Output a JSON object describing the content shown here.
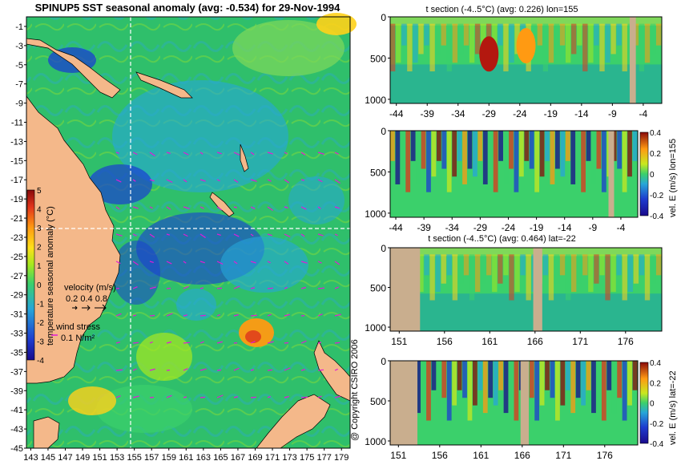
{
  "colors": {
    "land": "#cfa98c",
    "sea_base": "#2fbf6b",
    "cold": "#1a3fd0",
    "cool": "#27a6d8",
    "warm": "#ffd21a",
    "hot": "#e2491b",
    "vector": "#e21bd6",
    "mask": "#c9ae8e"
  },
  "colorscale": [
    "#1a0a8c",
    "#1e3ccf",
    "#27a6d8",
    "#3bd06b",
    "#a6e81f",
    "#ffe01a",
    "#ff9a12",
    "#e2341b",
    "#8a0a0a"
  ],
  "map": {
    "title": "SPINUP5 SST seasonal anomaly (avg: -0.534) for 29-Nov-1994",
    "lat_ticks": [
      "-1",
      "-3",
      "-5",
      "-7",
      "-9",
      "-11",
      "-13",
      "-15",
      "-17",
      "-19",
      "-21",
      "-23",
      "-25",
      "-27",
      "-29",
      "-31",
      "-33",
      "-35",
      "-37",
      "-39",
      "-41",
      "-43",
      "-45"
    ],
    "lon_ticks": [
      "143",
      "145",
      "147",
      "149",
      "151",
      "153",
      "155",
      "157",
      "159",
      "161",
      "163",
      "165",
      "167",
      "169",
      "171",
      "173",
      "175",
      "177",
      "179"
    ],
    "colorbar": {
      "label": "temperature seasonal anomaly (°C)",
      "ticks": [
        "5",
        "4",
        "3",
        "2",
        "1",
        "0",
        "-1",
        "-2",
        "-3",
        "-4"
      ],
      "range": [
        -4,
        5
      ]
    },
    "velocity_legend": {
      "title": "velocity (m/s)",
      "values": "0.2 0.4 0.8"
    },
    "stress_legend": {
      "title": "wind stress",
      "value": "0.1 N/m²"
    },
    "copyright": "@ Copyright CSIRO 2006"
  },
  "chart_data": [
    {
      "type": "heatmap",
      "title": "SPINUP5 SST seasonal anomaly (avg: -0.534) for 29-Nov-1994",
      "xlabel": "",
      "ylabel": "",
      "xlim": [
        142.5,
        180
      ],
      "ylim": [
        -45,
        0
      ],
      "x_ticks": [
        143,
        145,
        147,
        149,
        151,
        153,
        155,
        157,
        159,
        161,
        163,
        165,
        167,
        169,
        171,
        173,
        175,
        177,
        179
      ],
      "y_ticks": [
        -1,
        -3,
        -5,
        -7,
        -9,
        -11,
        -13,
        -15,
        -17,
        -19,
        -21,
        -23,
        -25,
        -27,
        -29,
        -31,
        -33,
        -35,
        -37,
        -39,
        -41,
        -43,
        -45
      ],
      "colorbar_range": [
        -4,
        5
      ],
      "section_lines": {
        "lon": 155,
        "lat": -22
      },
      "grid": false
    },
    {
      "type": "heatmap",
      "title": "t section (-4..5°C) (avg: 0.226) lon=155",
      "x_ticks": [
        -44,
        -39,
        -34,
        -29,
        -24,
        -19,
        -14,
        -9,
        -4
      ],
      "y_ticks": [
        0,
        500,
        1000
      ],
      "xlim": [
        -45,
        -1
      ],
      "ylim": [
        1050,
        0
      ],
      "hotspots": [
        {
          "x": -29,
          "depth": 450,
          "value": "hot"
        },
        {
          "x": -23,
          "depth": 350,
          "value": "warm"
        }
      ]
    },
    {
      "type": "heatmap",
      "title": "",
      "colorbar_label": "vel. E (m/s) lon=155",
      "colorbar_ticks": [
        "0.4",
        "0.2",
        "0",
        "-0.2",
        "-0.4"
      ],
      "colorbar_range": [
        -0.4,
        0.4
      ],
      "x_ticks": [
        -44,
        -39,
        -34,
        -29,
        -24,
        -19,
        -14,
        -9,
        -4
      ],
      "y_ticks": [
        0,
        500,
        1000
      ],
      "xlim": [
        -45,
        -1
      ],
      "ylim": [
        1050,
        0
      ]
    },
    {
      "type": "heatmap",
      "title": "t section (-4..5°C) (avg: 0.464) lat=-22",
      "x_ticks": [
        151,
        156,
        161,
        166,
        171,
        176
      ],
      "y_ticks": [
        0,
        500,
        1000
      ],
      "xlim": [
        150,
        180
      ],
      "ylim": [
        1050,
        0
      ]
    },
    {
      "type": "heatmap",
      "title": "",
      "colorbar_label": "vel. E (m/s) lat=-22",
      "colorbar_ticks": [
        "0.4",
        "0.2",
        "0",
        "-0.2",
        "-0.4"
      ],
      "colorbar_range": [
        -0.4,
        0.4
      ],
      "x_ticks": [
        151,
        156,
        161,
        166,
        171,
        176
      ],
      "y_ticks": [
        0,
        500,
        1000
      ],
      "xlim": [
        150,
        180
      ],
      "ylim": [
        1050,
        0
      ]
    }
  ]
}
